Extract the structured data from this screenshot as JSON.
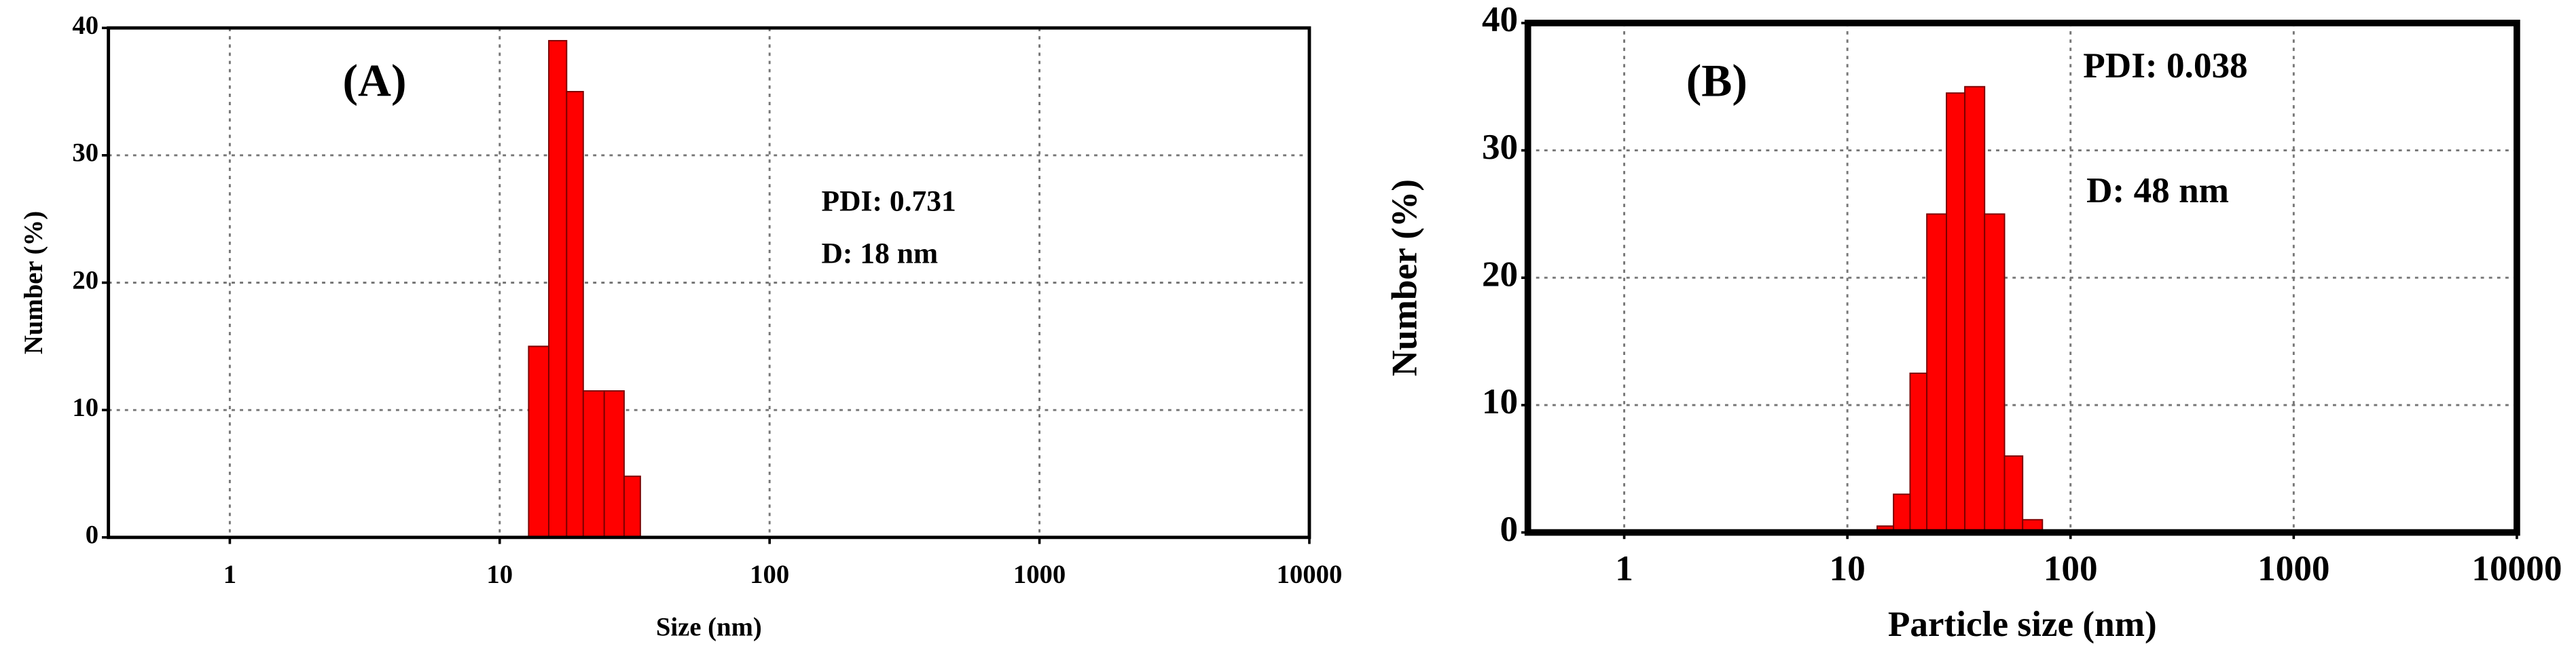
{
  "chart_data": [
    {
      "type": "histogram",
      "annotations": [
        "(A)",
        "PDI: 0.731",
        "D: 18 nm"
      ],
      "xlabel": "Size (nm)",
      "ylabel": "Number (%)",
      "bins": [
        12.8,
        15.2,
        17.7,
        20.4,
        24.4,
        28.9,
        33.2
      ],
      "counts": [
        15,
        39,
        35,
        11.5,
        11.5,
        4.8
      ],
      "color": "#ff0000",
      "xscale": "log",
      "xlim": [
        0.355,
        10000
      ],
      "xticks": [
        1,
        10,
        100,
        1000,
        10000
      ],
      "ylim": [
        0,
        40
      ],
      "yticks": [
        0,
        10,
        20,
        30,
        40
      ],
      "grid": true
    },
    {
      "type": "histogram",
      "annotations": [
        "(B)",
        "PDI: 0.038",
        "D: 48 nm"
      ],
      "xlabel": "Particle size (nm)",
      "ylabel": "Number (%)",
      "bins": [
        13.6,
        16.1,
        19.1,
        22.7,
        27.8,
        33.6,
        41.2,
        50.6,
        61.0,
        74.8
      ],
      "counts": [
        0.5,
        3,
        12.5,
        25,
        34.5,
        35,
        25,
        6,
        1
      ],
      "color": "#ff0000",
      "xscale": "log",
      "xlim": [
        0.37,
        10000
      ],
      "xticks": [
        1,
        10,
        100,
        1000,
        10000
      ],
      "ylim": [
        0,
        40
      ],
      "yticks": [
        0,
        10,
        20,
        30,
        40
      ],
      "grid": true
    }
  ]
}
